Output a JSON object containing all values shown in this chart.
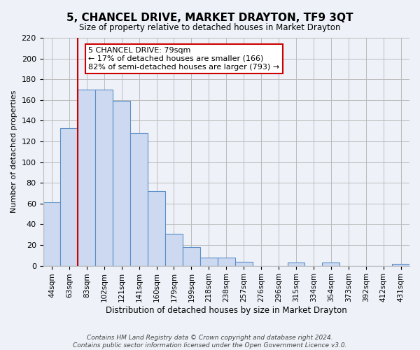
{
  "title": "5, CHANCEL DRIVE, MARKET DRAYTON, TF9 3QT",
  "subtitle": "Size of property relative to detached houses in Market Drayton",
  "xlabel": "Distribution of detached houses by size in Market Drayton",
  "ylabel": "Number of detached properties",
  "footer_line1": "Contains HM Land Registry data © Crown copyright and database right 2024.",
  "footer_line2": "Contains public sector information licensed under the Open Government Licence v3.0.",
  "bin_labels": [
    "44sqm",
    "63sqm",
    "83sqm",
    "102sqm",
    "121sqm",
    "141sqm",
    "160sqm",
    "179sqm",
    "199sqm",
    "218sqm",
    "238sqm",
    "257sqm",
    "276sqm",
    "296sqm",
    "315sqm",
    "334sqm",
    "354sqm",
    "373sqm",
    "392sqm",
    "412sqm",
    "431sqm"
  ],
  "bar_values": [
    61,
    133,
    170,
    170,
    159,
    128,
    72,
    31,
    18,
    8,
    8,
    4,
    0,
    0,
    3,
    0,
    3,
    0,
    0,
    0,
    2
  ],
  "bar_color": "#ccd9f0",
  "bar_edge_color": "#5b8dc8",
  "property_line_color": "#cc0000",
  "property_line_xindex": 1,
  "ylim": [
    0,
    220
  ],
  "yticks": [
    0,
    20,
    40,
    60,
    80,
    100,
    120,
    140,
    160,
    180,
    200,
    220
  ],
  "annotation_title": "5 CHANCEL DRIVE: 79sqm",
  "annotation_line1": "← 17% of detached houses are smaller (166)",
  "annotation_line2": "82% of semi-detached houses are larger (793) →",
  "annotation_box_color": "#ffffff",
  "annotation_box_edge": "#cc0000",
  "grid_color": "#bbbbbb",
  "bg_color": "#eef2f8",
  "title_fontsize": 11,
  "subtitle_fontsize": 8.5,
  "xlabel_fontsize": 8.5,
  "ylabel_fontsize": 8,
  "tick_fontsize": 8,
  "xtick_fontsize": 7.5,
  "annot_fontsize": 8,
  "footer_fontsize": 6.5
}
